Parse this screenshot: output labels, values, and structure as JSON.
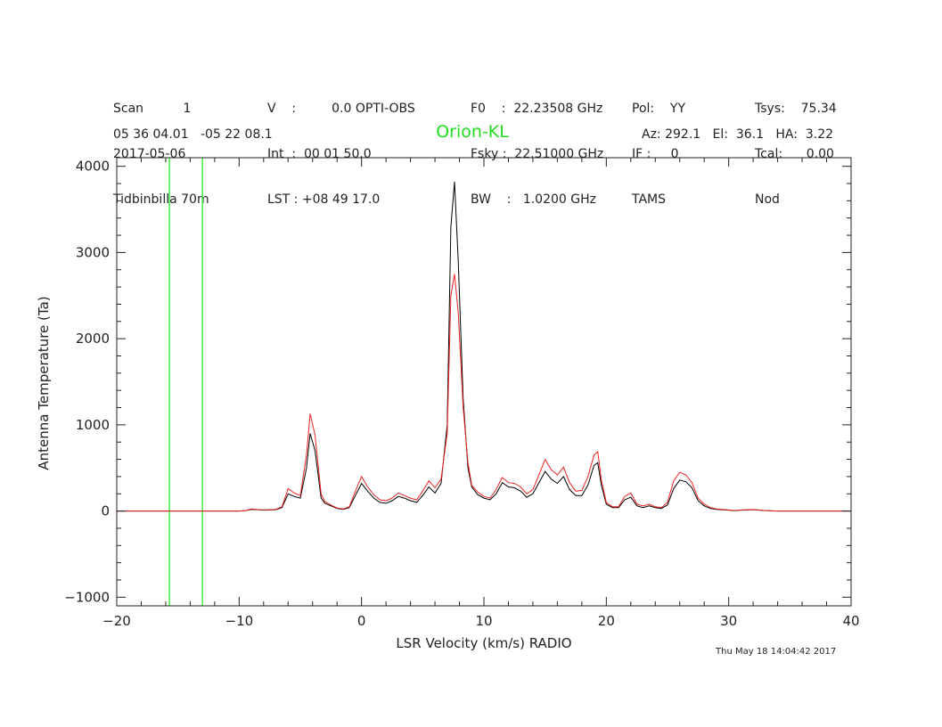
{
  "header": {
    "col1": [
      "Scan          1",
      "2017-05-06",
      "Tidbinbilla 70m"
    ],
    "col2": [
      "V    :         0.0 OPTI-OBS",
      "Int  :  00 01 50.0",
      "LST : +08 49 17.0"
    ],
    "col3": [
      "F0    :  22.23508 GHz",
      "Fsky :  22.51000 GHz",
      "BW    :   1.0200 GHz"
    ],
    "col4": [
      "Pol:    YY",
      "IF :     0",
      "TAMS"
    ],
    "col5": [
      "Tsys:    75.34",
      "Tcal:      0.00",
      "Nod"
    ],
    "coords": "05 36 04.01   -05 22 08.1",
    "pointing": "Az: 292.1   El:  36.1   HA:  3.22"
  },
  "timestamp": "Thu May 18 14:04:42 2017",
  "chart_data": {
    "type": "line",
    "title": "Orion-KL",
    "xlabel": "LSR Velocity (km/s) RADIO",
    "ylabel": "Antenna Temperature (Ta)",
    "xlim": [
      -20,
      40
    ],
    "ylim": [
      -1100,
      4100
    ],
    "xticks": [
      -20,
      -10,
      0,
      10,
      20,
      30,
      40
    ],
    "yticks": [
      -1000,
      0,
      1000,
      2000,
      3000,
      4000
    ],
    "markers_x": [
      -15.7,
      -13.0
    ],
    "colors": {
      "black": "#000000",
      "red": "#ee2222",
      "marker": "#44ee44"
    },
    "series": [
      {
        "color": "black",
        "points": [
          [
            -20,
            0
          ],
          [
            -19,
            0
          ],
          [
            -18,
            0
          ],
          [
            -17,
            0
          ],
          [
            -16,
            0
          ],
          [
            -15,
            0
          ],
          [
            -14,
            0
          ],
          [
            -13,
            0
          ],
          [
            -12,
            0
          ],
          [
            -11,
            0
          ],
          [
            -10,
            0
          ],
          [
            -9.5,
            5
          ],
          [
            -9,
            20
          ],
          [
            -8.5,
            15
          ],
          [
            -8,
            10
          ],
          [
            -7,
            15
          ],
          [
            -6.5,
            40
          ],
          [
            -6,
            200
          ],
          [
            -5.5,
            170
          ],
          [
            -5,
            150
          ],
          [
            -4.5,
            500
          ],
          [
            -4.2,
            900
          ],
          [
            -3.8,
            700
          ],
          [
            -3.3,
            150
          ],
          [
            -3,
            90
          ],
          [
            -2.5,
            60
          ],
          [
            -2,
            30
          ],
          [
            -1.5,
            20
          ],
          [
            -1,
            40
          ],
          [
            -0.5,
            180
          ],
          [
            0,
            320
          ],
          [
            0.5,
            230
          ],
          [
            1,
            150
          ],
          [
            1.5,
            100
          ],
          [
            2,
            90
          ],
          [
            2.5,
            120
          ],
          [
            3,
            170
          ],
          [
            3.5,
            150
          ],
          [
            4,
            120
          ],
          [
            4.5,
            100
          ],
          [
            5,
            180
          ],
          [
            5.5,
            280
          ],
          [
            6,
            210
          ],
          [
            6.5,
            320
          ],
          [
            7,
            1000
          ],
          [
            7.3,
            3300
          ],
          [
            7.6,
            3820
          ],
          [
            7.9,
            2900
          ],
          [
            8.3,
            1300
          ],
          [
            8.7,
            500
          ],
          [
            9,
            280
          ],
          [
            9.5,
            190
          ],
          [
            10,
            150
          ],
          [
            10.5,
            130
          ],
          [
            11,
            200
          ],
          [
            11.5,
            330
          ],
          [
            12,
            280
          ],
          [
            12.5,
            270
          ],
          [
            13,
            230
          ],
          [
            13.5,
            160
          ],
          [
            14,
            200
          ],
          [
            14.5,
            330
          ],
          [
            15,
            460
          ],
          [
            15.5,
            370
          ],
          [
            16,
            320
          ],
          [
            16.5,
            400
          ],
          [
            17,
            250
          ],
          [
            17.5,
            180
          ],
          [
            18,
            180
          ],
          [
            18.5,
            300
          ],
          [
            19,
            530
          ],
          [
            19.3,
            560
          ],
          [
            19.6,
            300
          ],
          [
            20,
            80
          ],
          [
            20.5,
            40
          ],
          [
            21,
            40
          ],
          [
            21.5,
            130
          ],
          [
            22,
            160
          ],
          [
            22.5,
            60
          ],
          [
            23,
            40
          ],
          [
            23.5,
            60
          ],
          [
            24,
            40
          ],
          [
            24.5,
            30
          ],
          [
            25,
            70
          ],
          [
            25.5,
            260
          ],
          [
            26,
            360
          ],
          [
            26.5,
            340
          ],
          [
            27,
            270
          ],
          [
            27.5,
            120
          ],
          [
            28,
            60
          ],
          [
            28.5,
            30
          ],
          [
            29,
            20
          ],
          [
            30,
            10
          ],
          [
            30.5,
            5
          ],
          [
            31,
            10
          ],
          [
            32,
            15
          ],
          [
            33,
            5
          ],
          [
            34,
            0
          ],
          [
            36,
            0
          ],
          [
            38,
            0
          ],
          [
            40,
            0
          ]
        ]
      },
      {
        "color": "red",
        "points": [
          [
            -20,
            0
          ],
          [
            -19,
            0
          ],
          [
            -18,
            0
          ],
          [
            -17,
            0
          ],
          [
            -16,
            0
          ],
          [
            -15,
            0
          ],
          [
            -14,
            0
          ],
          [
            -13,
            0
          ],
          [
            -12,
            0
          ],
          [
            -11,
            0
          ],
          [
            -10,
            0
          ],
          [
            -9.5,
            5
          ],
          [
            -9,
            25
          ],
          [
            -8.5,
            18
          ],
          [
            -8,
            12
          ],
          [
            -7,
            20
          ],
          [
            -6.5,
            50
          ],
          [
            -6,
            260
          ],
          [
            -5.5,
            210
          ],
          [
            -5,
            180
          ],
          [
            -4.5,
            650
          ],
          [
            -4.2,
            1130
          ],
          [
            -3.8,
            880
          ],
          [
            -3.3,
            200
          ],
          [
            -3,
            110
          ],
          [
            -2.5,
            70
          ],
          [
            -2,
            35
          ],
          [
            -1.5,
            25
          ],
          [
            -1,
            50
          ],
          [
            -0.5,
            230
          ],
          [
            0,
            400
          ],
          [
            0.5,
            280
          ],
          [
            1,
            190
          ],
          [
            1.5,
            130
          ],
          [
            2,
            120
          ],
          [
            2.5,
            150
          ],
          [
            3,
            210
          ],
          [
            3.5,
            180
          ],
          [
            4,
            150
          ],
          [
            4.5,
            130
          ],
          [
            5,
            230
          ],
          [
            5.5,
            350
          ],
          [
            6,
            270
          ],
          [
            6.5,
            370
          ],
          [
            7,
            900
          ],
          [
            7.3,
            2500
          ],
          [
            7.6,
            2750
          ],
          [
            7.9,
            2300
          ],
          [
            8.3,
            1200
          ],
          [
            8.7,
            560
          ],
          [
            9,
            300
          ],
          [
            9.5,
            220
          ],
          [
            10,
            170
          ],
          [
            10.5,
            150
          ],
          [
            11,
            250
          ],
          [
            11.5,
            390
          ],
          [
            12,
            330
          ],
          [
            12.5,
            320
          ],
          [
            13,
            280
          ],
          [
            13.5,
            200
          ],
          [
            14,
            250
          ],
          [
            14.5,
            420
          ],
          [
            15,
            600
          ],
          [
            15.5,
            480
          ],
          [
            16,
            420
          ],
          [
            16.5,
            510
          ],
          [
            17,
            330
          ],
          [
            17.5,
            230
          ],
          [
            18,
            240
          ],
          [
            18.5,
            400
          ],
          [
            19,
            650
          ],
          [
            19.3,
            690
          ],
          [
            19.6,
            360
          ],
          [
            20,
            100
          ],
          [
            20.5,
            50
          ],
          [
            21,
            50
          ],
          [
            21.5,
            170
          ],
          [
            22,
            210
          ],
          [
            22.5,
            80
          ],
          [
            23,
            60
          ],
          [
            23.5,
            80
          ],
          [
            24,
            50
          ],
          [
            24.5,
            40
          ],
          [
            25,
            100
          ],
          [
            25.5,
            350
          ],
          [
            26,
            450
          ],
          [
            26.5,
            420
          ],
          [
            27,
            330
          ],
          [
            27.5,
            150
          ],
          [
            28,
            80
          ],
          [
            28.5,
            40
          ],
          [
            29,
            25
          ],
          [
            30,
            12
          ],
          [
            30.5,
            6
          ],
          [
            31,
            12
          ],
          [
            32,
            18
          ],
          [
            33,
            6
          ],
          [
            34,
            0
          ],
          [
            36,
            0
          ],
          [
            38,
            0
          ],
          [
            40,
            0
          ]
        ]
      }
    ]
  }
}
